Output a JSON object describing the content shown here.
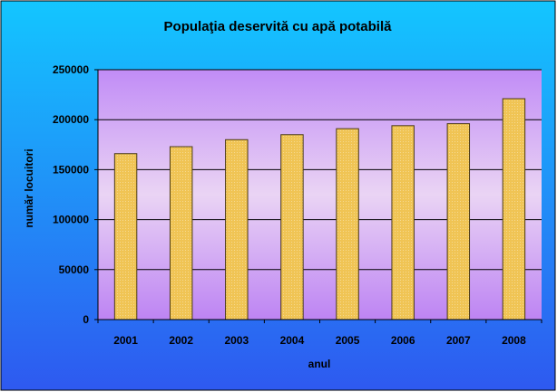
{
  "chart_data": {
    "type": "bar",
    "title": "Populaţia deservită cu apă potabilă",
    "xlabel": "anul",
    "ylabel": "număr locuitori",
    "categories": [
      "2001",
      "2002",
      "2003",
      "2004",
      "2005",
      "2006",
      "2007",
      "2008"
    ],
    "values": [
      166000,
      173000,
      180000,
      185000,
      191000,
      194000,
      196000,
      221000
    ],
    "ylim": [
      0,
      250000
    ],
    "yticks": [
      "0",
      "50000",
      "100000",
      "150000",
      "200000",
      "250000"
    ],
    "grid": true,
    "legend": "none"
  },
  "colors": {
    "background_top": "#13c6ff",
    "background_bottom": "#2e59f0",
    "plot_top": "#c18cf6",
    "plot_mid": "#ead4f4",
    "plot_bottom": "#bd84f3",
    "bar_fill": "#f0c454",
    "bar_stroke": "#4a3a14",
    "gridline": "#000000"
  }
}
